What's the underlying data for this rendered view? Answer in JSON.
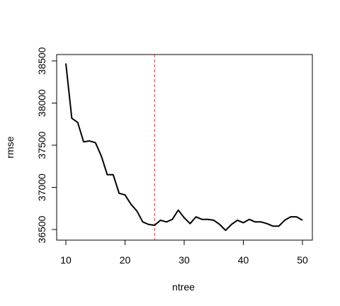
{
  "chart_data": {
    "type": "line",
    "title": "",
    "xlabel": "ntree",
    "ylabel": "rmse",
    "xlim": [
      10,
      50
    ],
    "ylim": [
      36450,
      38550
    ],
    "grid": false,
    "x_ticks": [
      10,
      20,
      30,
      40,
      50
    ],
    "y_ticks": [
      36500,
      37000,
      37500,
      38000,
      38500
    ],
    "series": [
      {
        "color": "#000000",
        "x": [
          10,
          11,
          12,
          13,
          14,
          15,
          16,
          17,
          18,
          19,
          20,
          21,
          22,
          23,
          24,
          25,
          26,
          27,
          28,
          29,
          30,
          31,
          32,
          33,
          34,
          35,
          36,
          37,
          38,
          39,
          40,
          41,
          42,
          43,
          44,
          45,
          46,
          47,
          48,
          49,
          50
        ],
        "values": [
          38470,
          37820,
          37770,
          37540,
          37550,
          37530,
          37370,
          37150,
          37150,
          36930,
          36910,
          36800,
          36720,
          36590,
          36560,
          36550,
          36610,
          36590,
          36620,
          36730,
          36640,
          36570,
          36650,
          36620,
          36620,
          36610,
          36560,
          36490,
          36560,
          36610,
          36580,
          36620,
          36590,
          36590,
          36570,
          36540,
          36540,
          36610,
          36650,
          36650,
          36610
        ]
      }
    ],
    "reference_line": {
      "orientation": "vertical",
      "x": 25,
      "color": "#d62728",
      "style": "dashed"
    }
  }
}
